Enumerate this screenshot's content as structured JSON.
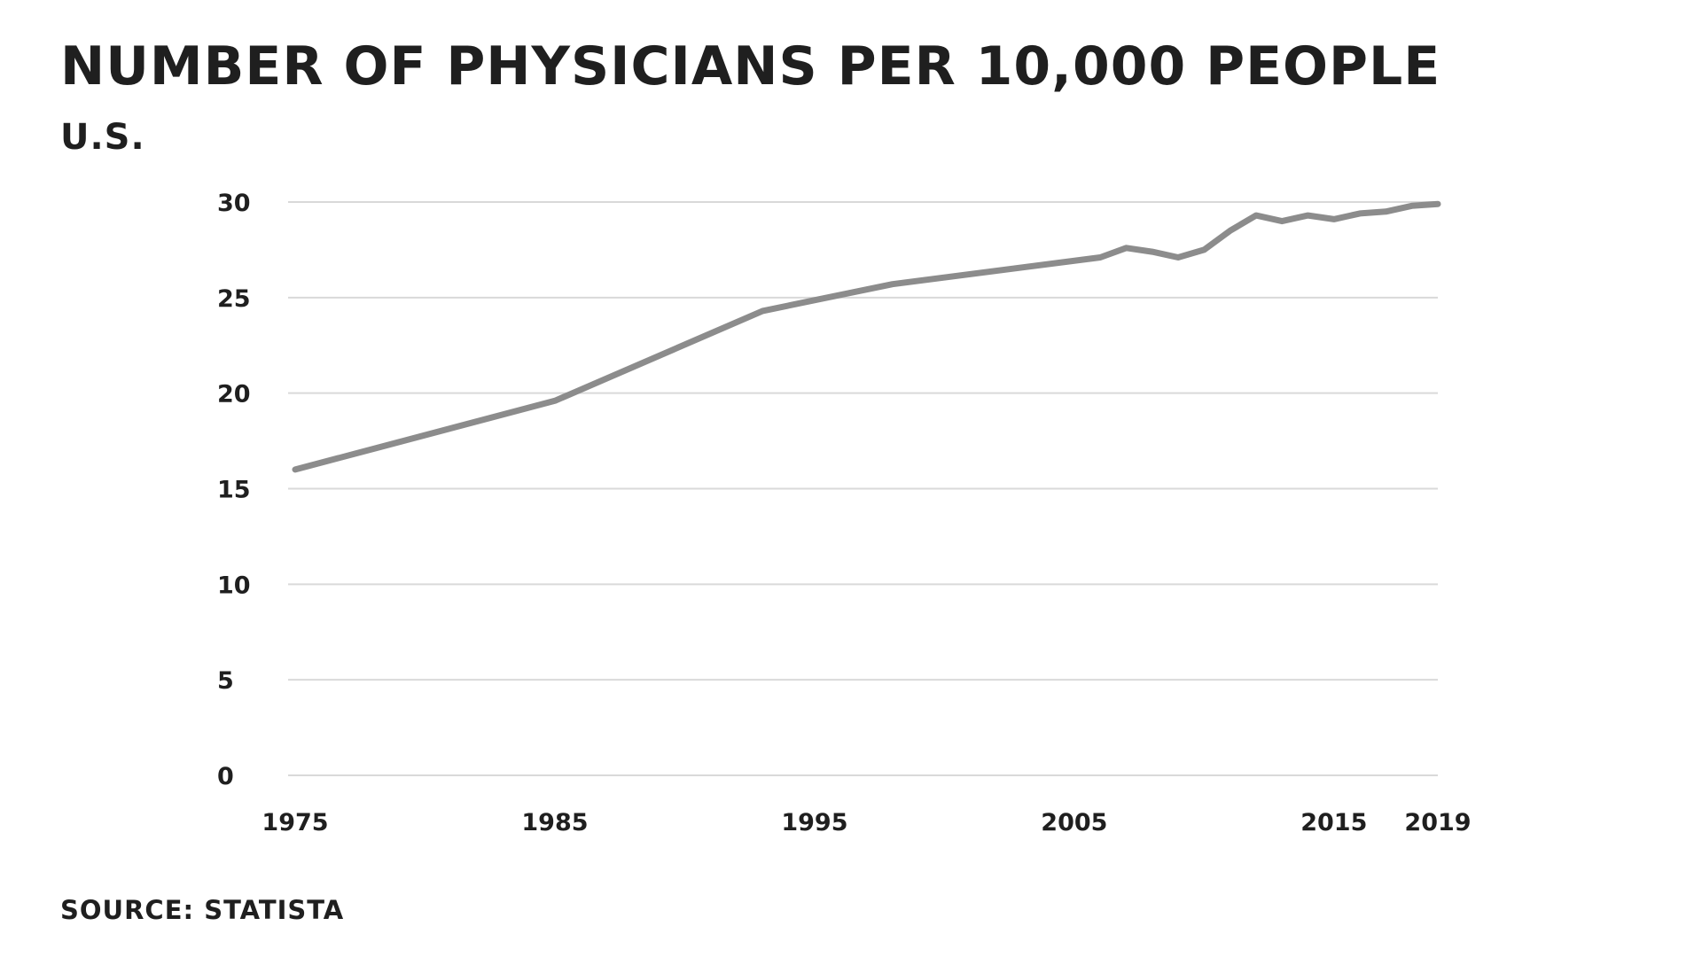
{
  "header": {
    "title": "NUMBER OF PHYSICIANS PER 10,000 PEOPLE",
    "subtitle": "U.S."
  },
  "footer": {
    "source": "SOURCE: STATISTA"
  },
  "colors": {
    "line": "#8c8c8c",
    "grid": "#d9d9d9",
    "text": "#1f1f1f"
  },
  "chart_data": {
    "type": "line",
    "title": "NUMBER OF PHYSICIANS PER 10,000 PEOPLE",
    "subtitle": "U.S.",
    "xlabel": "",
    "ylabel": "",
    "xlim": [
      1975,
      2019
    ],
    "ylim": [
      0,
      30
    ],
    "yticks": [
      0,
      5,
      10,
      15,
      20,
      25,
      30
    ],
    "xticks": [
      1975,
      1985,
      1995,
      2005,
      2015,
      2019
    ],
    "grid": true,
    "legend": "none",
    "series": [
      {
        "x": [
          1975,
          1985,
          1993,
          1998,
          2006,
          2007,
          2008,
          2009,
          2010,
          2011,
          2012,
          2013,
          2014,
          2015,
          2016,
          2017,
          2018,
          2019
        ],
        "y": [
          16.0,
          19.6,
          24.3,
          25.7,
          27.1,
          27.6,
          27.4,
          27.1,
          27.5,
          28.5,
          29.3,
          29.0,
          29.3,
          29.1,
          29.4,
          29.5,
          29.8,
          29.9
        ]
      }
    ]
  }
}
